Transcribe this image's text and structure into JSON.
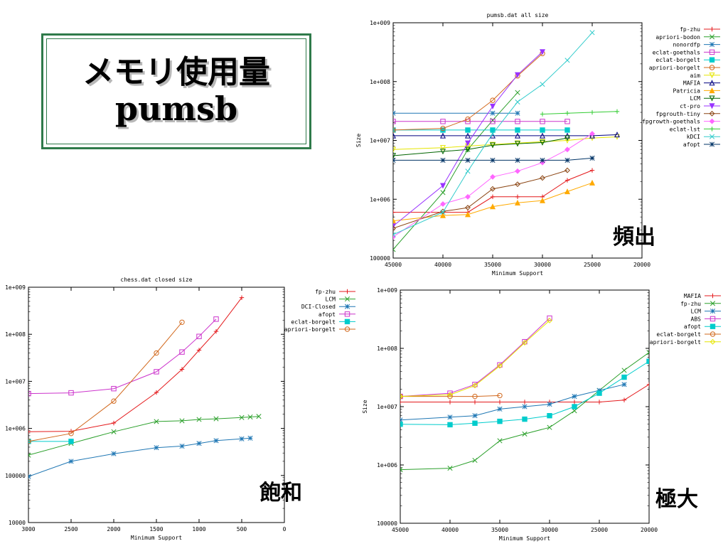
{
  "slide": {
    "title_line1": "メモリ使用量",
    "title_line2": "pumsb",
    "label_all": "頻出",
    "label_closed": "飽和",
    "label_maximal": "極大"
  },
  "chart_data": [
    {
      "type": "line",
      "title": "pumsb.dat all size",
      "xlabel": "Minimum Support",
      "ylabel": "Size",
      "xlim": [
        45000,
        20000
      ],
      "xticks": [
        45000,
        40000,
        35000,
        30000,
        25000,
        20000
      ],
      "xtick_labels": [
        "45000",
        "40000",
        "35000",
        "30000",
        "25000",
        "20000"
      ],
      "ylim": [
        100000,
        1000000000
      ],
      "ylog": true,
      "yticks": [
        100000,
        1000000,
        10000000,
        100000000,
        1000000000
      ],
      "ytick_labels": [
        "100000",
        "1e+006",
        "1e+007",
        "1e+008",
        "1e+009"
      ],
      "legend_position": "right",
      "series": [
        {
          "name": "fp-zhu",
          "color": "#e41a1c",
          "marker": "plus",
          "x": [
            45000,
            37500,
            35000,
            32500,
            30000,
            27500,
            25000
          ],
          "y": [
            600000,
            600000,
            1100000,
            1100000,
            1100000,
            2100000,
            3100000
          ]
        },
        {
          "name": "apriori-bodon",
          "color": "#2ca02c",
          "marker": "x",
          "x": [
            45000,
            40000,
            37500,
            35000,
            32500
          ],
          "y": [
            140000,
            1300000,
            7000000,
            22000000,
            65000000
          ]
        },
        {
          "name": "nonordfp",
          "color": "#1f77b4",
          "marker": "star",
          "x": [
            45000,
            35000,
            32500
          ],
          "y": [
            29000000,
            29000000,
            29000000
          ]
        },
        {
          "name": "eclat-goethals",
          "color": "#cc33cc",
          "marker": "square",
          "x": [
            45000,
            40000,
            37500,
            35000,
            32500,
            30000,
            27500
          ],
          "y": [
            21000000,
            21000000,
            21000000,
            21000000,
            21000000,
            21000000,
            21000000
          ]
        },
        {
          "name": "eclat-borgelt",
          "color": "#00cccc",
          "marker": "filledsquare",
          "x": [
            45000,
            40000,
            37500,
            35000,
            32500,
            30000,
            27500
          ],
          "y": [
            15000000,
            15000000,
            15000000,
            15000000,
            15000000,
            15000000,
            15000000
          ]
        },
        {
          "name": "apriori-borgelt",
          "color": "#d2691e",
          "marker": "circle",
          "x": [
            45000,
            40000,
            37500,
            35000,
            32500,
            30000
          ],
          "y": [
            15000000,
            16000000,
            23000000,
            48000000,
            125000000,
            300000000
          ]
        },
        {
          "name": "aim",
          "color": "#e6e600",
          "marker": "triangledown",
          "x": [
            45000,
            40000,
            37500,
            35000,
            32500,
            30000,
            27500,
            25000,
            22500
          ],
          "y": [
            7000000,
            7500000,
            8000000,
            8500000,
            9000000,
            9500000,
            10000000,
            11000000,
            11500000
          ]
        },
        {
          "name": "MAFIA",
          "color": "#000080",
          "marker": "triangle",
          "x": [
            45000,
            40000,
            37500,
            35000,
            32500,
            30000,
            27500,
            25000,
            22500
          ],
          "y": [
            12000000,
            12000000,
            12000000,
            12000000,
            12000000,
            12000000,
            12000000,
            12000000,
            12500000
          ]
        },
        {
          "name": "Patricia",
          "color": "#ffaa00",
          "marker": "filledtriangle",
          "x": [
            45000,
            40000,
            37500,
            35000,
            32500,
            30000,
            27500,
            25000
          ],
          "y": [
            430000,
            530000,
            550000,
            750000,
            870000,
            950000,
            1350000,
            1900000
          ]
        },
        {
          "name": "LCM",
          "color": "#006400",
          "marker": "triangledown",
          "x": [
            45000,
            40000,
            37500,
            35000,
            32500,
            30000,
            27500
          ],
          "y": [
            5500000,
            6500000,
            7000000,
            8300000,
            8800000,
            9200000,
            11000000
          ]
        },
        {
          "name": "ct-pro",
          "color": "#9933ff",
          "marker": "filledtriangledown",
          "x": [
            45000,
            40000,
            37500,
            35000,
            32500,
            30000
          ],
          "y": [
            350000,
            1700000,
            9000000,
            38000000,
            130000000,
            320000000
          ]
        },
        {
          "name": "fpgrouth-tiny",
          "color": "#8b4513",
          "marker": "diamond",
          "x": [
            45000,
            40000,
            37500,
            35000,
            32500,
            30000,
            27500
          ],
          "y": [
            320000,
            620000,
            720000,
            1500000,
            1800000,
            2300000,
            3100000
          ]
        },
        {
          "name": "fpgrowth-goethals",
          "color": "#ff66ff",
          "marker": "filleddiamond",
          "x": [
            45000,
            40000,
            37500,
            35000,
            32500,
            30000,
            27500,
            25000
          ],
          "y": [
            230000,
            830000,
            1100000,
            2400000,
            3000000,
            4200000,
            7000000,
            13000000
          ]
        },
        {
          "name": "eclat-lst",
          "color": "#33cc33",
          "marker": "plus",
          "x": [
            30000,
            27500,
            25000,
            22500
          ],
          "y": [
            28000000,
            29000000,
            30000000,
            31000000
          ]
        },
        {
          "name": "kDCI",
          "color": "#33cccc",
          "marker": "x",
          "x": [
            45000,
            40000,
            37500,
            35000,
            32500,
            30000,
            27500,
            25000
          ],
          "y": [
            250000,
            600000,
            3000000,
            13000000,
            45000000,
            90000000,
            230000000,
            680000000
          ]
        },
        {
          "name": "afopt",
          "color": "#003366",
          "marker": "star",
          "x": [
            45000,
            40000,
            37500,
            35000,
            32500,
            30000,
            27500,
            25000
          ],
          "y": [
            4600000,
            4600000,
            4600000,
            4600000,
            4600000,
            4600000,
            4600000,
            5000000
          ]
        }
      ]
    },
    {
      "type": "line",
      "title": "chess.dat closed size",
      "xlabel": "Minimum Support",
      "ylabel": "",
      "xlim": [
        3000,
        0
      ],
      "xticks": [
        3000,
        2500,
        2000,
        1500,
        1000,
        500,
        0
      ],
      "xtick_labels": [
        "3000",
        "2500",
        "2000",
        "1500",
        "1000",
        "500",
        "0"
      ],
      "ylim": [
        10000,
        1000000000
      ],
      "ylog": true,
      "yticks": [
        10000,
        100000,
        1000000,
        10000000,
        100000000,
        1000000000
      ],
      "ytick_labels": [
        "10000",
        "100000",
        "1e+006",
        "1e+007",
        "1e+008",
        "1e+009"
      ],
      "legend_position": "right",
      "series": [
        {
          "name": "fp-zhu",
          "color": "#e41a1c",
          "marker": "plus",
          "x": [
            3000,
            2500,
            2000,
            1500,
            1200,
            1000,
            800,
            500
          ],
          "y": [
            850000,
            870000,
            1300000,
            5800000,
            18000000,
            46000000,
            115000000,
            600000000
          ]
        },
        {
          "name": "LCM",
          "color": "#2ca02c",
          "marker": "x",
          "x": [
            3000,
            2500,
            2000,
            1500,
            1200,
            1000,
            800,
            500,
            400,
            300
          ],
          "y": [
            270000,
            480000,
            850000,
            1400000,
            1450000,
            1550000,
            1600000,
            1700000,
            1750000,
            1800000
          ]
        },
        {
          "name": "DCI-Closed",
          "color": "#1f77b4",
          "marker": "star",
          "x": [
            3000,
            2500,
            2000,
            1500,
            1200,
            1000,
            800,
            500,
            400
          ],
          "y": [
            95000,
            200000,
            290000,
            390000,
            420000,
            480000,
            550000,
            600000,
            620000
          ]
        },
        {
          "name": "afopt",
          "color": "#cc33cc",
          "marker": "square",
          "x": [
            3000,
            2500,
            2000,
            1500,
            1200,
            1000,
            800
          ],
          "y": [
            5500000,
            5700000,
            7000000,
            16000000,
            42000000,
            90000000,
            210000000
          ]
        },
        {
          "name": "eclat-borgelt",
          "color": "#00cccc",
          "marker": "filledsquare",
          "x": [
            3000,
            2500
          ],
          "y": [
            530000,
            530000
          ]
        },
        {
          "name": "apriori-borgelt",
          "color": "#d2691e",
          "marker": "circle",
          "x": [
            3000,
            2500,
            2000,
            1500,
            1200
          ],
          "y": [
            530000,
            780000,
            3800000,
            40000000,
            180000000
          ]
        }
      ]
    },
    {
      "type": "line",
      "title": "",
      "xlabel": "Minimum Support",
      "ylabel": "Size",
      "xlim": [
        45000,
        20000
      ],
      "xticks": [
        45000,
        40000,
        35000,
        30000,
        25000,
        20000
      ],
      "xtick_labels": [
        "45000",
        "40000",
        "35000",
        "30000",
        "25000",
        "20000"
      ],
      "ylim": [
        100000,
        1000000000
      ],
      "ylog": true,
      "yticks": [
        100000,
        1000000,
        10000000,
        100000000,
        1000000000
      ],
      "ytick_labels": [
        "100000",
        "1e+006",
        "1e+007",
        "1e+008",
        "1e+009"
      ],
      "legend_position": "right",
      "series": [
        {
          "name": "MAFIA",
          "color": "#e41a1c",
          "marker": "plus",
          "x": [
            45000,
            40000,
            37500,
            35000,
            32500,
            30000,
            27500,
            25000,
            22500,
            20000
          ],
          "y": [
            12000000,
            12000000,
            12000000,
            12000000,
            12000000,
            12000000,
            12000000,
            12000000,
            13000000,
            24000000
          ]
        },
        {
          "name": "fp-zhu",
          "color": "#2ca02c",
          "marker": "x",
          "x": [
            45000,
            40000,
            37500,
            35000,
            32500,
            30000,
            27500,
            25000,
            22500,
            20000
          ],
          "y": [
            830000,
            880000,
            1200000,
            2600000,
            3400000,
            4400000,
            8500000,
            19000000,
            42000000,
            85000000
          ]
        },
        {
          "name": "LCM",
          "color": "#1f77b4",
          "marker": "star",
          "x": [
            45000,
            40000,
            37500,
            35000,
            32500,
            30000,
            27500,
            25000,
            22500
          ],
          "y": [
            5900000,
            6600000,
            7000000,
            9100000,
            10000000,
            11000000,
            15000000,
            19000000,
            24000000
          ]
        },
        {
          "name": "ABS",
          "color": "#cc33cc",
          "marker": "square",
          "x": [
            45000,
            40000,
            37500,
            35000,
            32500,
            30000
          ],
          "y": [
            15000000,
            17000000,
            24000000,
            52000000,
            130000000,
            330000000
          ]
        },
        {
          "name": "afopt",
          "color": "#00cccc",
          "marker": "filledsquare",
          "x": [
            45000,
            40000,
            37500,
            35000,
            32500,
            30000,
            27500,
            25000,
            22500,
            20000
          ],
          "y": [
            5000000,
            4900000,
            5200000,
            5600000,
            6100000,
            7000000,
            10000000,
            17000000,
            32000000,
            60000000
          ]
        },
        {
          "name": "eclat-borgelt",
          "color": "#d2691e",
          "marker": "circle",
          "x": [
            45000,
            40000,
            37500,
            35000
          ],
          "y": [
            15000000,
            15000000,
            15000000,
            15500000
          ]
        },
        {
          "name": "apriori-borgelt",
          "color": "#e6e600",
          "marker": "diamond",
          "x": [
            45000,
            40000,
            37500,
            35000,
            32500,
            30000
          ],
          "y": [
            15000000,
            16000000,
            23000000,
            50000000,
            125000000,
            300000000
          ]
        }
      ]
    }
  ]
}
